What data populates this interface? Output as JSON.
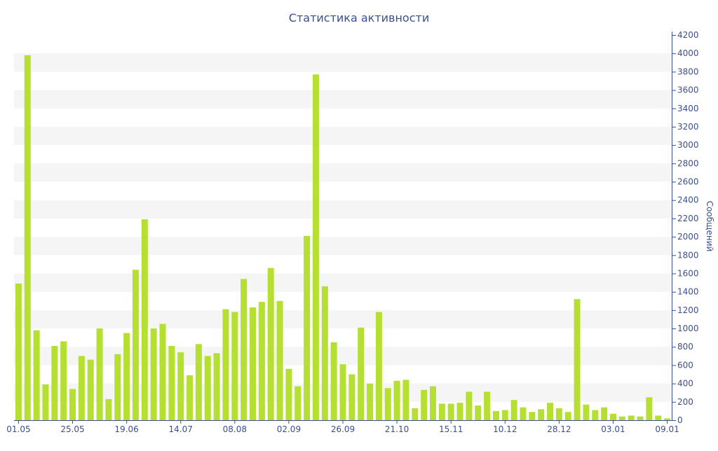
{
  "chart_data": {
    "type": "bar",
    "title": "Статистика активности",
    "xlabel": "",
    "ylabel": "Сообщений",
    "ylim": [
      0,
      4200
    ],
    "y_ticks": [
      0,
      200,
      400,
      600,
      800,
      1000,
      1200,
      1400,
      1600,
      1800,
      2000,
      2200,
      2400,
      2600,
      2800,
      3000,
      3200,
      3400,
      3600,
      3800,
      4000,
      4200
    ],
    "y_axis_side": "right",
    "grid": true,
    "legend": "none",
    "colors": {
      "bar": "#b5e032",
      "band": "#f5f5f5",
      "axis": "#3b4f8c",
      "text": "#3b4f8c"
    },
    "x_tick_labels": [
      {
        "label": "01.05",
        "index": 0
      },
      {
        "label": "25.05",
        "index": 6
      },
      {
        "label": "19.06",
        "index": 12
      },
      {
        "label": "14.07",
        "index": 18
      },
      {
        "label": "08.08",
        "index": 24
      },
      {
        "label": "02.09",
        "index": 30
      },
      {
        "label": "26.09",
        "index": 36
      },
      {
        "label": "21.10",
        "index": 42
      },
      {
        "label": "15.11",
        "index": 48
      },
      {
        "label": "10.12",
        "index": 54
      },
      {
        "label": "28.12",
        "index": 60
      },
      {
        "label": "03.01",
        "index": 66
      },
      {
        "label": "09.01",
        "index": 72
      }
    ],
    "values": [
      1490,
      3980,
      980,
      390,
      810,
      860,
      340,
      700,
      660,
      1000,
      230,
      720,
      950,
      1640,
      2190,
      1000,
      1050,
      810,
      740,
      490,
      830,
      700,
      730,
      1210,
      1180,
      1540,
      1230,
      1290,
      1660,
      1300,
      560,
      370,
      2010,
      3770,
      1460,
      850,
      610,
      500,
      1010,
      400,
      1180,
      350,
      430,
      440,
      130,
      330,
      370,
      180,
      180,
      190,
      310,
      160,
      310,
      100,
      110,
      220,
      140,
      90,
      120,
      190,
      130,
      90,
      1320,
      170,
      110,
      140,
      70,
      40,
      50,
      40,
      250,
      50,
      20
    ]
  }
}
